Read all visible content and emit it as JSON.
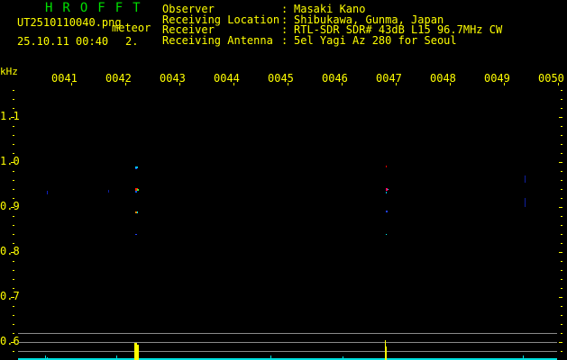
{
  "app_title": "HROFFT",
  "file": {
    "name": "UT2510110040.png",
    "date_time": "25.10.11 00:40",
    "mode": "meteor",
    "mode_value": "2."
  },
  "info": [
    {
      "label": "Observer",
      "value": "Masaki Kano"
    },
    {
      "label": "Receiving Location",
      "value": "Shibukawa, Gunma, Japan"
    },
    {
      "label": "Receiver",
      "value": "RTL-SDR SDR# 43dB L15 96.7MHz CW"
    },
    {
      "label": "Receiving Antenna",
      "value": "5el Yagi Az 280 for Seoul"
    }
  ],
  "axis": {
    "unit": "kHz",
    "freq_labels": [
      "1.1",
      "1.0",
      "0.9",
      "0.8",
      "0.7",
      "0.6"
    ],
    "time_labels": [
      "0041",
      "0042",
      "0043",
      "0044",
      "0045",
      "0046",
      "0047",
      "0048",
      "0049",
      "0050"
    ]
  },
  "colors": {
    "text": "#ffff00",
    "title": "#00e000",
    "baseline": "#00e0e0",
    "grid": "#8a8a8a"
  }
}
